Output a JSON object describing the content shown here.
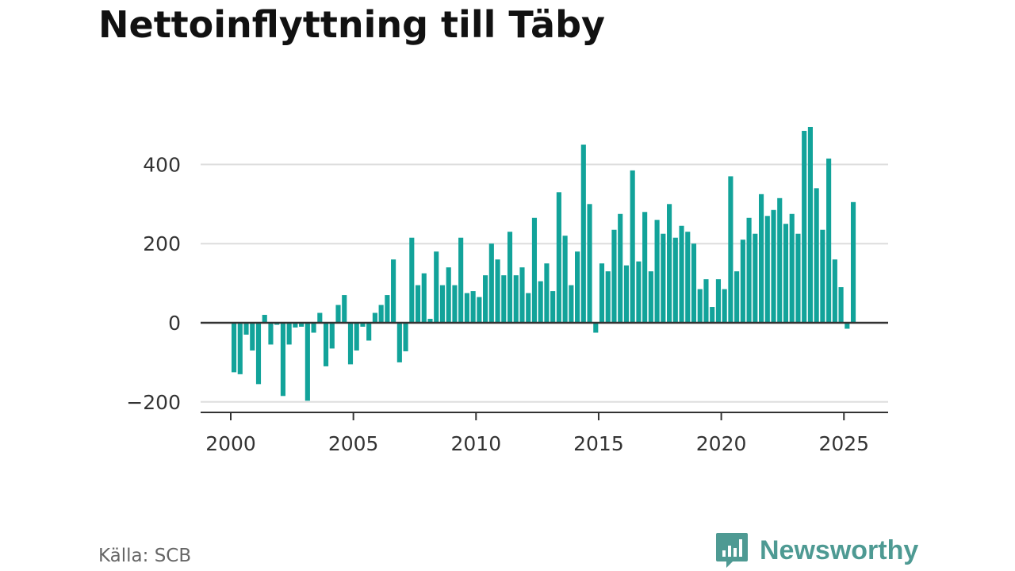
{
  "title": "Nettoinflyttning till Täby",
  "source": "Källa: SCB",
  "brand": "Newsworthy",
  "colors": {
    "bar": "#12a39a",
    "grid": "#dddddd",
    "axis": "#333333",
    "brand": "#4e9a93"
  },
  "icons": {
    "brand_logo": "speech-bubble-bar-chart-icon"
  },
  "chart_data": {
    "type": "bar",
    "title": "Nettoinflyttning till Täby",
    "xlabel": "",
    "ylabel": "",
    "ylim": [
      -225,
      500
    ],
    "xlim": [
      1999.5,
      2026.0
    ],
    "yticks": [
      -200,
      0,
      200,
      400
    ],
    "ytick_labels": [
      "−200",
      "0",
      "200",
      "400"
    ],
    "xticks": [
      2000,
      2005,
      2010,
      2015,
      2020,
      2025
    ],
    "xtick_labels": [
      "2000",
      "2005",
      "2010",
      "2015",
      "2020",
      "2025"
    ],
    "grid": true,
    "legend": "none",
    "frequency": "quarterly",
    "start_quarter": "2000 Q1",
    "values": [
      -125,
      -130,
      -30,
      -70,
      -155,
      20,
      -55,
      -5,
      -185,
      -55,
      -12,
      -10,
      -197,
      -25,
      25,
      -110,
      -65,
      45,
      70,
      -105,
      -70,
      -10,
      -45,
      25,
      45,
      70,
      160,
      -100,
      -72,
      215,
      95,
      125,
      10,
      180,
      95,
      140,
      95,
      215,
      75,
      80,
      65,
      120,
      200,
      160,
      120,
      230,
      120,
      140,
      75,
      265,
      105,
      150,
      80,
      330,
      220,
      95,
      180,
      450,
      300,
      -25,
      150,
      130,
      235,
      275,
      145,
      385,
      155,
      280,
      130,
      260,
      225,
      300,
      215,
      245,
      230,
      200,
      85,
      110,
      40,
      110,
      85,
      370,
      130,
      210,
      265,
      225,
      325,
      270,
      285,
      315,
      250,
      275,
      225,
      485,
      495,
      340,
      235,
      415,
      160,
      90,
      -15,
      305
    ]
  }
}
